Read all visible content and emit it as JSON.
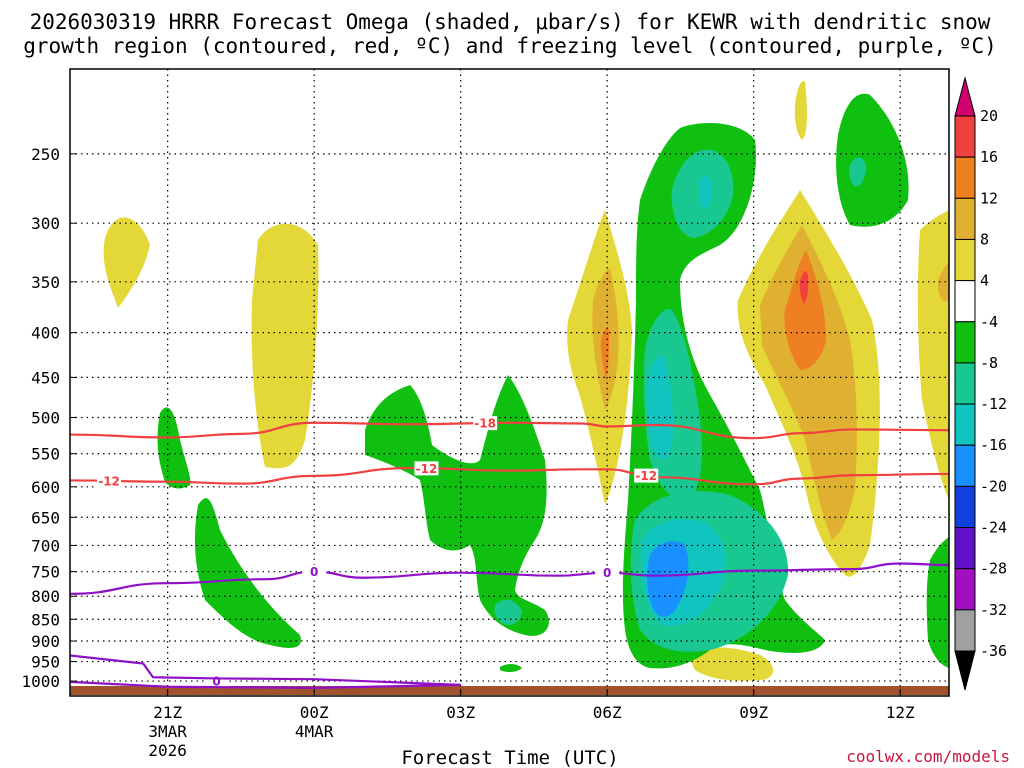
{
  "title": {
    "line1": "2026030319 HRRR Forecast Omega (shaded, μbar/s) for KEWR with dendritic snow",
    "line2": "growth region (contoured, red, ºC) and freezing level (contoured, purple, ºC)"
  },
  "xlabel": "Forecast Time (UTC)",
  "credit": "coolwx.com/models",
  "chart_data": {
    "type": "time-height cross section",
    "x_axis": {
      "ticks": [
        {
          "hour": 0,
          "label": "21Z",
          "sub": [
            "3MAR",
            "2026"
          ]
        },
        {
          "hour": 3,
          "label": "00Z",
          "sub": [
            "4MAR"
          ]
        },
        {
          "hour": 6,
          "label": "03Z",
          "sub": []
        },
        {
          "hour": 9,
          "label": "06Z",
          "sub": []
        },
        {
          "hour": 12,
          "label": "09Z",
          "sub": []
        },
        {
          "hour": 15,
          "label": "12Z",
          "sub": []
        }
      ],
      "range_hours": [
        -2,
        16
      ]
    },
    "y_axis": {
      "scale": "pressure (log)",
      "ticks": [
        250,
        300,
        350,
        400,
        450,
        500,
        550,
        600,
        650,
        700,
        750,
        800,
        850,
        900,
        950,
        1000
      ],
      "range_mb": [
        200,
        1040
      ],
      "grid": true
    },
    "colorbar": {
      "labels": [
        "20",
        "16",
        "12",
        "8",
        "4",
        "-4",
        "-8",
        "-12",
        "-16",
        "-20",
        "-24",
        "-28",
        "-32",
        "-36"
      ],
      "colors": [
        "#d0006e",
        "#f04040",
        "#ee8022",
        "#e0b030",
        "#e4d838",
        "#ffffff",
        "#10c010",
        "#18c890",
        "#10c4c0",
        "#1890ff",
        "#1040e0",
        "#6010c8",
        "#a010c0",
        "#a0a0a0",
        "#000000"
      ]
    },
    "contours": [
      {
        "name": "-18",
        "color": "#f04040",
        "labels": [
          "-18"
        ],
        "path_mb": [
          [
            -2,
            523
          ],
          [
            0,
            527
          ],
          [
            1.5,
            522
          ],
          [
            3,
            507
          ],
          [
            5,
            509
          ],
          [
            7,
            507
          ],
          [
            8.5,
            508
          ],
          [
            9,
            512
          ],
          [
            10,
            510
          ],
          [
            12,
            528
          ],
          [
            13,
            521
          ],
          [
            14,
            516
          ],
          [
            16,
            517
          ]
        ]
      },
      {
        "name": "-12",
        "color": "#f04040",
        "labels": [
          "-12",
          "-12",
          "-12"
        ],
        "path_mb": [
          [
            -2,
            590
          ],
          [
            0,
            592
          ],
          [
            1.5,
            595
          ],
          [
            3,
            583
          ],
          [
            5,
            571
          ],
          [
            7,
            575
          ],
          [
            8.5,
            573
          ],
          [
            9,
            573
          ],
          [
            10,
            585
          ],
          [
            12,
            596
          ],
          [
            13,
            587
          ],
          [
            14,
            582
          ],
          [
            16,
            580
          ]
        ]
      },
      {
        "name": "0",
        "color": "#9010c8",
        "labels": [
          "0",
          "0",
          "0"
        ],
        "path_mb": [
          [
            -2,
            795
          ],
          [
            0,
            773
          ],
          [
            2,
            765
          ],
          [
            3,
            750
          ],
          [
            4,
            762
          ],
          [
            6,
            752
          ],
          [
            8,
            758
          ],
          [
            9,
            752
          ],
          [
            10,
            758
          ],
          [
            12,
            748
          ],
          [
            14,
            745
          ],
          [
            15,
            734
          ],
          [
            16,
            737
          ]
        ]
      }
    ],
    "omega_features": [
      {
        "sign": "upward (negative)",
        "peak_value_band": "-20 to -16",
        "time": "07Z",
        "level_mb": 750
      },
      {
        "sign": "downward (positive)",
        "peak_value_band": "16 to 20",
        "time": "10Z",
        "level_mb": 380
      }
    ]
  }
}
